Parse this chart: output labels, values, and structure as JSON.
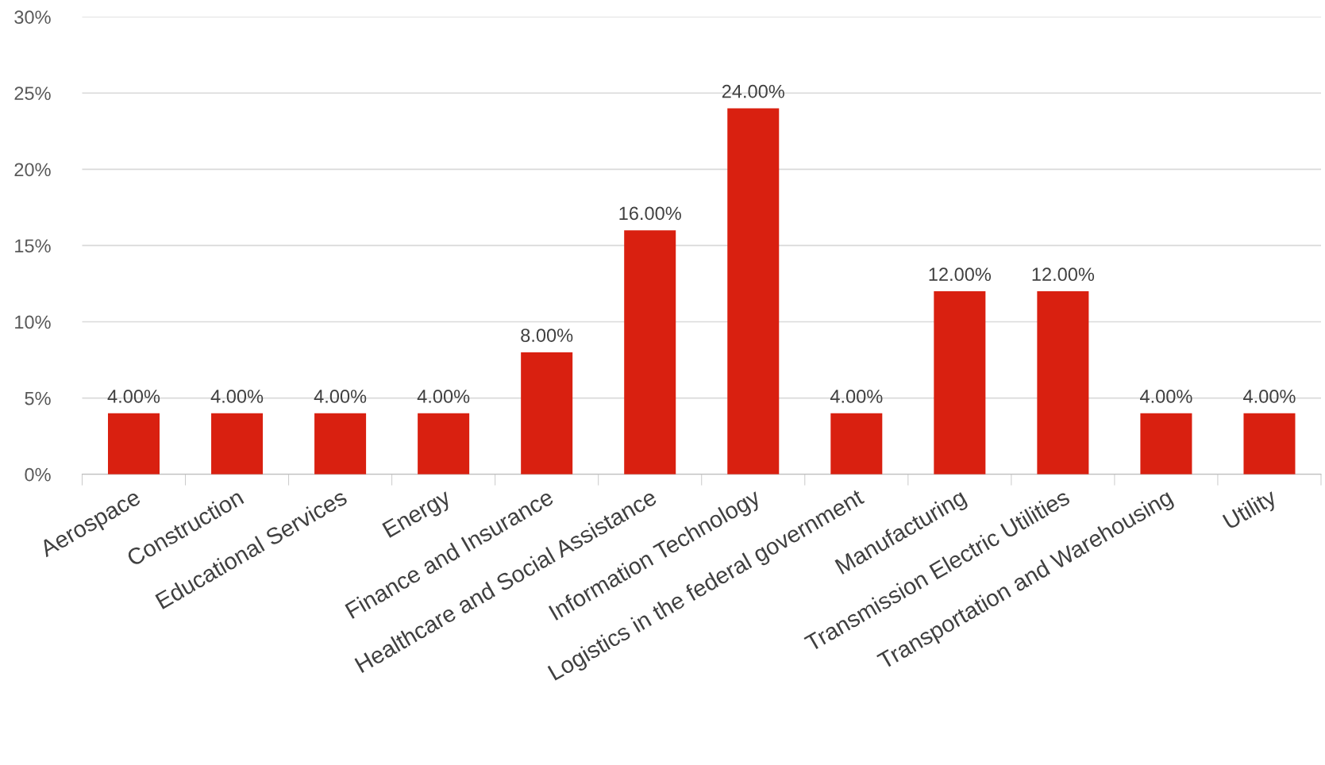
{
  "chart_data": {
    "type": "bar",
    "categories": [
      "Aerospace",
      "Construction",
      "Educational Services",
      "Energy",
      "Finance and Insurance",
      "Healthcare and Social Assistance",
      "Information Technology",
      "Logistics in the federal government",
      "Manufacturing",
      "Transmission Electric Utilities",
      "Transportation and Warehousing",
      "Utility"
    ],
    "values": [
      4,
      4,
      4,
      4,
      8,
      16,
      24,
      4,
      12,
      12,
      4,
      4
    ],
    "value_labels": [
      "4.00%",
      "4.00%",
      "4.00%",
      "4.00%",
      "8.00%",
      "16.00%",
      "24.00%",
      "4.00%",
      "12.00%",
      "12.00%",
      "4.00%",
      "4.00%"
    ],
    "color": "#d92010",
    "ylim": [
      0,
      30
    ],
    "yticks": [
      {
        "value": 0,
        "label": "0%"
      },
      {
        "value": 5,
        "label": "5%"
      },
      {
        "value": 10,
        "label": "10%"
      },
      {
        "value": 15,
        "label": "15%"
      },
      {
        "value": 20,
        "label": "20%"
      },
      {
        "value": 25,
        "label": "25%"
      },
      {
        "value": 30,
        "label": "30%"
      }
    ],
    "grid": "y"
  }
}
